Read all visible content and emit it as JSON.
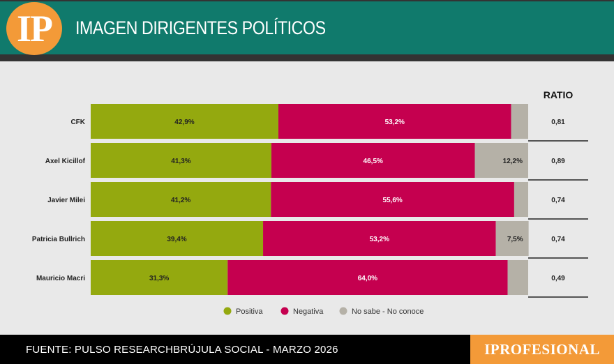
{
  "header": {
    "logo_text": "IP",
    "title": "IMAGEN DIRIGENTES POLÍTICOS"
  },
  "footer": {
    "source": "FUENTE: PULSO RESEARCHBRÚJULA SOCIAL - MARZO 2026",
    "brand": "IPROFESIONAL"
  },
  "colors": {
    "positive": "#94a90f",
    "negative": "#c5004f",
    "unknown": "#b5b1a7",
    "teal": "#107a6c",
    "orange": "#f39a38"
  },
  "chart_data": {
    "type": "bar",
    "orientation": "horizontal",
    "stacked": true,
    "categories": [
      "CFK",
      "Axel Kicillof",
      "Javier Milei",
      "Patricia Bullrich",
      "Mauricio Macri"
    ],
    "series": [
      {
        "name": "Positiva",
        "values": [
          42.9,
          41.3,
          41.2,
          39.4,
          31.3
        ],
        "labels": [
          "42,9%",
          "41,3%",
          "41,2%",
          "39,4%",
          "31,3%"
        ]
      },
      {
        "name": "Negativa",
        "values": [
          53.2,
          46.5,
          55.6,
          53.2,
          64.0
        ],
        "labels": [
          "53,2%",
          "46,5%",
          "55,6%",
          "53,2%",
          "64,0%"
        ]
      },
      {
        "name": "No sabe - No conoce",
        "values": [
          3.9,
          12.2,
          3.2,
          7.5,
          4.7
        ],
        "labels": [
          "",
          "12,2%",
          "",
          "7,5%",
          ""
        ]
      }
    ],
    "ratio_header": "RATIO",
    "ratio": [
      "0,81",
      "0,89",
      "0,74",
      "0,74",
      "0,49"
    ],
    "xlim": [
      0,
      100
    ],
    "legend_position": "bottom"
  }
}
